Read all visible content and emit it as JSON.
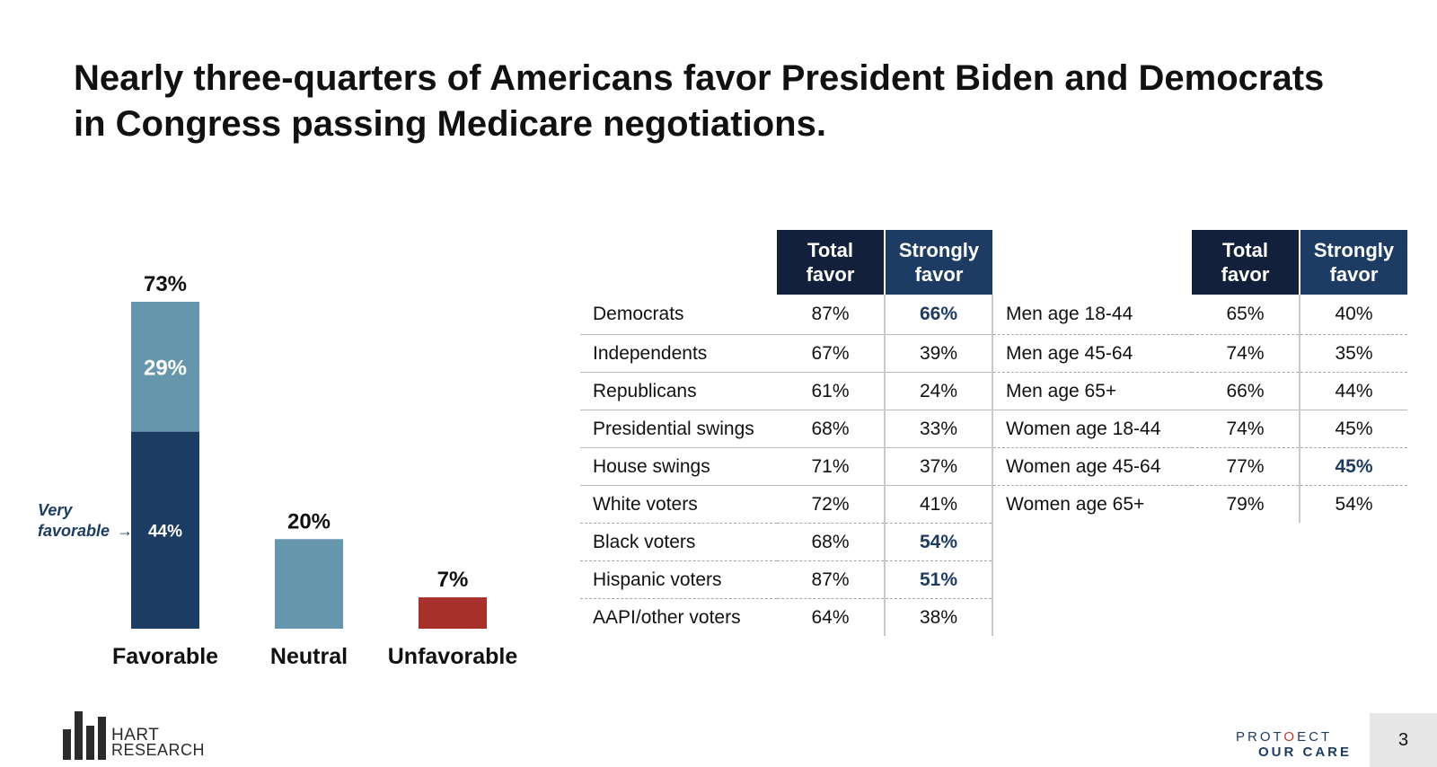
{
  "title": {
    "line1": "Nearly three-quarters of Americans favor President Biden and Democrats",
    "line2": "in Congress passing Medicare negotiations."
  },
  "chart_data": [
    {
      "type": "bar",
      "stacked": true,
      "categories": [
        "Favorable",
        "Neutral",
        "Unfavorable"
      ],
      "totals": [
        "73%",
        "20%",
        "7%"
      ],
      "ylim": [
        0,
        80
      ],
      "series": [
        {
          "name": "Very favorable",
          "values": [
            44,
            null,
            null
          ],
          "labels": [
            "44%",
            "",
            ""
          ],
          "color": "#1d3c64"
        },
        {
          "name": "",
          "values": [
            29,
            20,
            null
          ],
          "labels": [
            "29%",
            "",
            ""
          ],
          "color": "#6696ac"
        },
        {
          "name": "",
          "values": [
            null,
            null,
            7
          ],
          "labels": [
            "",
            "",
            ""
          ],
          "color": "#a8302a"
        }
      ],
      "annotation": {
        "line1": "Very",
        "line2": "favorable",
        "arrow": "→"
      },
      "legend": "none",
      "grid": false
    },
    {
      "type": "table",
      "headers": [
        "",
        "Total favor",
        "Strongly favor"
      ],
      "rows": [
        {
          "label": "Democrats",
          "total": "87%",
          "strong": "66%",
          "highlight": true
        },
        {
          "label": "Independents",
          "total": "67%",
          "strong": "39%",
          "highlight": false
        },
        {
          "label": "Republicans",
          "total": "61%",
          "strong": "24%",
          "highlight": false
        },
        {
          "label": "Presidential swings",
          "total": "68%",
          "strong": "33%",
          "highlight": false
        },
        {
          "label": "House swings",
          "total": "71%",
          "strong": "37%",
          "highlight": false
        },
        {
          "label": "White voters",
          "total": "72%",
          "strong": "41%",
          "highlight": false
        },
        {
          "label": "Black voters",
          "total": "68%",
          "strong": "54%",
          "highlight": true
        },
        {
          "label": "Hispanic voters",
          "total": "87%",
          "strong": "51%",
          "highlight": true
        },
        {
          "label": "AAPI/other voters",
          "total": "64%",
          "strong": "38%",
          "highlight": false
        }
      ]
    },
    {
      "type": "table",
      "headers": [
        "",
        "Total favor",
        "Strongly favor"
      ],
      "rows": [
        {
          "label": "Men age 18-44",
          "total": "65%",
          "strong": "40%",
          "highlight": false
        },
        {
          "label": "Men age 45-64",
          "total": "74%",
          "strong": "35%",
          "highlight": false
        },
        {
          "label": "Men age 65+",
          "total": "66%",
          "strong": "44%",
          "highlight": false
        },
        {
          "label": "Women age 18-44",
          "total": "74%",
          "strong": "45%",
          "highlight": false
        },
        {
          "label": "Women age 45-64",
          "total": "77%",
          "strong": "45%",
          "highlight": true
        },
        {
          "label": "Women age 65+",
          "total": "79%",
          "strong": "54%",
          "highlight": false
        }
      ]
    }
  ],
  "table_headers": {
    "total_line1": "Total",
    "total_line2": "favor",
    "strong_line1": "Strongly",
    "strong_line2": "favor"
  },
  "footer": {
    "hart_line1": "HART",
    "hart_line2": "RESEARCH",
    "poc_pro": "PRO",
    "poc_t": "T",
    "poc_o": "O",
    "poc_ect": "ECT",
    "poc_line2": "OUR CARE",
    "page_number": "3"
  },
  "colors": {
    "very_favorable": "#1d3c64",
    "favorable_light": "#6696ac",
    "unfavorable": "#a8302a",
    "header_dark": "#13203b",
    "header_blue": "#1d3c64",
    "highlight_text": "#1d3c64"
  }
}
